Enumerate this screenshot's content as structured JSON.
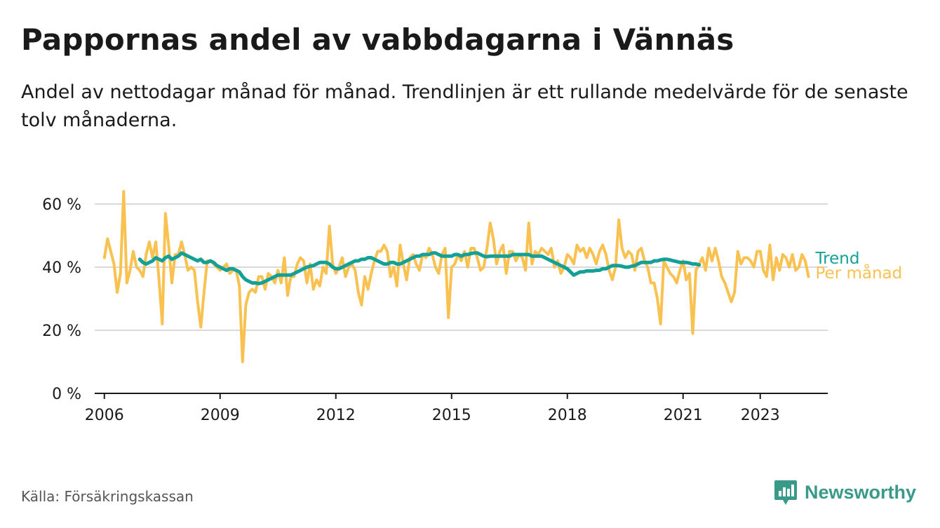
{
  "header": {
    "title": "Pappornas andel av vabbdagarna i Vännäs",
    "subtitle": "Andel av nettodagar månad för månad. Trendlinjen är ett rullande medelvärde för de senaste tolv månaderna."
  },
  "footer": {
    "source": "Källa: Försäkringskassan",
    "brand": "Newsworthy"
  },
  "colors": {
    "trend": "#14a097",
    "per_month": "#f9c150",
    "grid": "#d9d9d9",
    "axis": "#1a1a1a",
    "brand": "#3a9a8a"
  },
  "chart_data": {
    "type": "line",
    "title": "Pappornas andel av vabbdagarna i Vännäs",
    "xlabel": "",
    "ylabel": "",
    "ylim": [
      0,
      70
    ],
    "y_ticks": [
      0,
      20,
      40,
      60
    ],
    "y_tick_labels": [
      "0 %",
      "20 %",
      "40 %",
      "60 %"
    ],
    "x_range": [
      "2005-10",
      "2024-10"
    ],
    "x_ticks": [
      "2006-01",
      "2009-01",
      "2012-01",
      "2015-01",
      "2018-01",
      "2021-01",
      "2023-01"
    ],
    "x_tick_labels": [
      "2006",
      "2009",
      "2012",
      "2015",
      "2018",
      "2021",
      "2023"
    ],
    "grid": true,
    "legend": "direct labels at right end of lines",
    "series": [
      {
        "name": "Per månad",
        "start": "2006-01",
        "values": [
          43,
          49,
          45,
          41,
          32,
          38,
          64,
          35,
          39,
          45,
          40,
          39,
          37,
          44,
          48,
          43,
          48,
          36,
          22,
          57,
          47,
          35,
          44,
          44,
          48,
          44,
          39,
          40,
          39,
          29,
          21,
          32,
          42,
          42,
          41,
          40,
          39,
          40,
          41,
          38,
          39,
          39,
          34,
          10,
          28,
          32,
          33,
          32,
          37,
          37,
          33,
          38,
          37,
          35,
          39,
          35,
          43,
          31,
          37,
          37,
          41,
          43,
          42,
          35,
          41,
          33,
          36,
          34,
          40,
          38,
          53,
          41,
          38,
          40,
          43,
          37,
          40,
          41,
          39,
          32,
          28,
          37,
          33,
          38,
          42,
          45,
          45,
          47,
          45,
          37,
          40,
          34,
          47,
          41,
          36,
          43,
          44,
          41,
          39,
          44,
          43,
          46,
          44,
          40,
          38,
          44,
          46,
          24,
          40,
          41,
          44,
          42,
          45,
          40,
          46,
          46,
          43,
          39,
          40,
          46,
          54,
          49,
          41,
          45,
          47,
          38,
          45,
          45,
          42,
          44,
          43,
          39,
          54,
          41,
          45,
          44,
          46,
          45,
          44,
          46,
          40,
          42,
          38,
          40,
          44,
          43,
          41,
          47,
          45,
          46,
          43,
          46,
          44,
          41,
          45,
          47,
          44,
          39,
          36,
          40,
          55,
          46,
          43,
          45,
          44,
          39,
          45,
          46,
          42,
          40,
          35,
          35,
          30,
          22,
          42,
          40,
          38,
          37,
          35,
          39,
          42,
          36,
          38,
          19,
          39,
          41,
          43,
          39,
          46,
          42,
          46,
          42,
          37,
          35,
          32,
          29,
          32,
          45,
          41,
          43,
          43,
          42,
          40,
          45,
          45,
          39,
          37,
          47,
          36,
          43,
          39,
          44,
          43,
          40,
          44,
          39,
          40,
          44,
          42,
          37
        ]
      },
      {
        "name": "Trend",
        "start": "2006-12",
        "values": [
          42.5,
          41.5,
          41,
          41.5,
          42,
          43,
          42.5,
          42,
          43,
          43.5,
          42.5,
          43,
          43.5,
          44.5,
          44,
          43.5,
          43,
          42.5,
          42,
          42.5,
          41.5,
          41.5,
          42,
          41.5,
          40.5,
          40,
          39.5,
          39,
          39.5,
          39.5,
          39,
          38.5,
          37,
          36,
          35.5,
          35,
          35,
          34.8,
          35,
          35.5,
          36,
          36.5,
          37,
          37.5,
          37.5,
          37.5,
          37.5,
          37.5,
          38,
          38.5,
          39,
          39.5,
          40,
          40.3,
          40.5,
          41,
          41.5,
          41.5,
          41.5,
          41,
          40,
          39.5,
          39.5,
          40,
          40.5,
          41,
          41.5,
          42,
          42,
          42.5,
          42.5,
          43,
          43,
          42.5,
          42,
          41.5,
          41,
          41,
          41.5,
          41.5,
          41,
          41,
          41.5,
          42,
          42.5,
          43,
          43.5,
          43.5,
          44,
          44,
          44,
          44.5,
          44.5,
          44,
          43.5,
          43.5,
          43.5,
          43.5,
          44,
          44,
          43.5,
          44,
          44,
          44.3,
          44.5,
          44.5,
          44,
          43.5,
          43.3,
          43.5,
          43.5,
          43.5,
          43.5,
          43.5,
          43.5,
          43.5,
          44,
          44,
          44,
          44,
          44,
          44,
          43.5,
          43.5,
          43.5,
          43.5,
          43,
          42.5,
          42,
          41.5,
          41,
          40.5,
          40,
          39.5,
          38.5,
          37.5,
          38,
          38.5,
          38.5,
          38.8,
          38.8,
          38.8,
          39,
          39,
          39.5,
          39.5,
          40,
          40.5,
          40.5,
          40.5,
          40.3,
          40,
          40,
          40.3,
          40.5,
          41,
          41.5,
          41.5,
          41.5,
          41.5,
          42,
          42,
          42.3,
          42.5,
          42.5,
          42.3,
          42,
          41.8,
          41.5,
          41.5,
          41.5,
          41.3,
          41,
          41,
          40.7
        ]
      }
    ]
  }
}
